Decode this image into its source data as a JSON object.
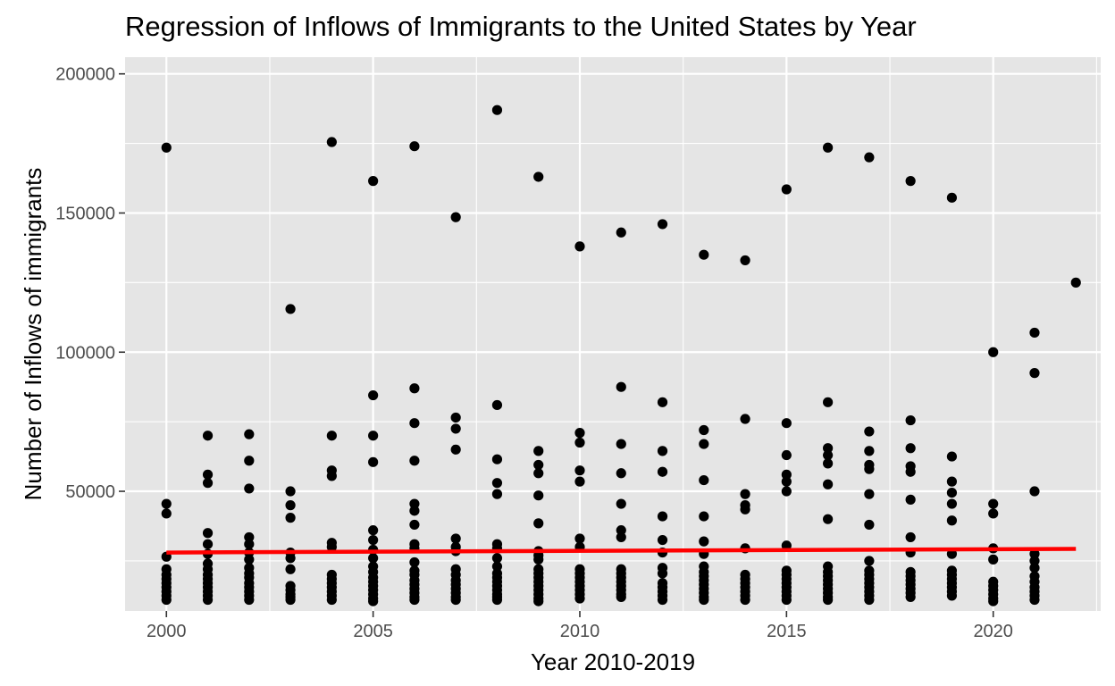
{
  "chart_data": {
    "type": "scatter",
    "title": "Regression of Inflows of Immigrants to the United States by Year",
    "xlabel": "Year 2010-2019",
    "ylabel": "Number of Inflows of immigrants",
    "xlim": [
      1999,
      2022.6
    ],
    "ylim": [
      7000,
      206000
    ],
    "x_ticks": [
      2000,
      2005,
      2010,
      2015,
      2020
    ],
    "y_ticks": [
      50000,
      100000,
      150000,
      200000
    ],
    "grid": true,
    "legend": "none",
    "colors": {
      "panel": "#e5e5e5",
      "points": "#000000",
      "regression": "#ff0000"
    },
    "regression_line": {
      "x": [
        2000,
        2022
      ],
      "y": [
        28000,
        29300
      ]
    },
    "series": [
      {
        "x": 2000,
        "y": [
          173500,
          45500,
          42000,
          26500,
          22000,
          20000,
          18500,
          17000,
          15500,
          14000,
          12500,
          11000
        ]
      },
      {
        "x": 2001,
        "y": [
          70000,
          56000,
          53000,
          35000,
          31000,
          27500,
          24000,
          22000,
          20000,
          18500,
          17000,
          15500,
          14000,
          12500,
          11000
        ]
      },
      {
        "x": 2002,
        "y": [
          70500,
          61000,
          51000,
          33500,
          31000,
          28000,
          25500,
          22500,
          20500,
          19000,
          17000,
          15500,
          14000,
          12500,
          11000
        ]
      },
      {
        "x": 2003,
        "y": [
          115500,
          50000,
          45000,
          40500,
          28000,
          26000,
          22000,
          16000,
          14500,
          13000,
          12000,
          11000
        ]
      },
      {
        "x": 2004,
        "y": [
          175500,
          70000,
          57500,
          55500,
          31500,
          30000,
          20000,
          18500,
          17000,
          15500,
          14000,
          12500,
          11000
        ]
      },
      {
        "x": 2005,
        "y": [
          161500,
          84500,
          70000,
          60500,
          36000,
          32500,
          29000,
          26000,
          23000,
          21000,
          19000,
          17500,
          16000,
          14500,
          13000,
          11500,
          10500
        ]
      },
      {
        "x": 2006,
        "y": [
          174000,
          87000,
          74500,
          61000,
          45500,
          43000,
          38000,
          31000,
          29500,
          24500,
          21500,
          20000,
          18000,
          16500,
          15000,
          13500,
          12000,
          11000
        ]
      },
      {
        "x": 2007,
        "y": [
          148500,
          76500,
          72500,
          65000,
          33000,
          30000,
          28500,
          22000,
          20000,
          18000,
          16500,
          15000,
          13500,
          12000,
          11000
        ]
      },
      {
        "x": 2008,
        "y": [
          187000,
          81000,
          61500,
          53000,
          49000,
          31000,
          29500,
          26000,
          23000,
          20500,
          19000,
          17500,
          16000,
          14500,
          13000,
          12000,
          11000
        ]
      },
      {
        "x": 2009,
        "y": [
          163000,
          64500,
          59500,
          56500,
          48500,
          38500,
          28500,
          27000,
          25500,
          22000,
          20500,
          19000,
          17500,
          16000,
          14500,
          13000,
          11500,
          10500
        ]
      },
      {
        "x": 2010,
        "y": [
          138000,
          71000,
          67500,
          57500,
          53500,
          33000,
          30000,
          22000,
          20500,
          19000,
          17500,
          16000,
          14500,
          13000,
          11500
        ]
      },
      {
        "x": 2011,
        "y": [
          143000,
          87500,
          67000,
          56500,
          45500,
          36000,
          33500,
          22000,
          20500,
          19000,
          17500,
          16000,
          14500,
          13000,
          12000
        ]
      },
      {
        "x": 2012,
        "y": [
          146000,
          82000,
          64500,
          57000,
          41000,
          32500,
          28000,
          22500,
          20500,
          17000,
          15500,
          14000,
          12500,
          11000
        ]
      },
      {
        "x": 2013,
        "y": [
          135000,
          72000,
          67000,
          54000,
          41000,
          32000,
          27500,
          23000,
          21000,
          19500,
          18000,
          16500,
          15000,
          13500,
          12000,
          11000
        ]
      },
      {
        "x": 2014,
        "y": [
          133000,
          76000,
          49000,
          45000,
          43500,
          29500,
          20000,
          18500,
          17000,
          15500,
          14000,
          12500,
          11000
        ]
      },
      {
        "x": 2015,
        "y": [
          158500,
          74500,
          63000,
          56000,
          53500,
          50000,
          30500,
          21500,
          20000,
          18500,
          17000,
          15500,
          14000,
          12500,
          11000
        ]
      },
      {
        "x": 2016,
        "y": [
          173500,
          82000,
          65500,
          63000,
          60000,
          52500,
          40000,
          23000,
          21000,
          19500,
          18000,
          16500,
          15000,
          13500,
          12000,
          11000
        ]
      },
      {
        "x": 2017,
        "y": [
          170000,
          71500,
          64500,
          59500,
          58000,
          49000,
          38000,
          25000,
          21500,
          20000,
          18500,
          17000,
          15500,
          14000,
          12500,
          11000
        ]
      },
      {
        "x": 2018,
        "y": [
          161500,
          75500,
          65500,
          59000,
          57000,
          47000,
          33500,
          28000,
          21000,
          19500,
          18000,
          16500,
          15000,
          13500,
          12000
        ]
      },
      {
        "x": 2019,
        "y": [
          155500,
          62500,
          53500,
          49500,
          45500,
          39500,
          27500,
          21500,
          20000,
          18500,
          17000,
          15500,
          14000,
          12500
        ]
      },
      {
        "x": 2020,
        "y": [
          100000,
          45500,
          42000,
          29500,
          25500,
          17500,
          16000,
          14500,
          13000,
          11500,
          10500
        ]
      },
      {
        "x": 2021,
        "y": [
          107000,
          92500,
          50000,
          27500,
          25000,
          22500,
          19500,
          17500,
          15500,
          14000,
          12500,
          11000
        ]
      },
      {
        "x": 2022,
        "y": [
          125000
        ]
      }
    ]
  }
}
